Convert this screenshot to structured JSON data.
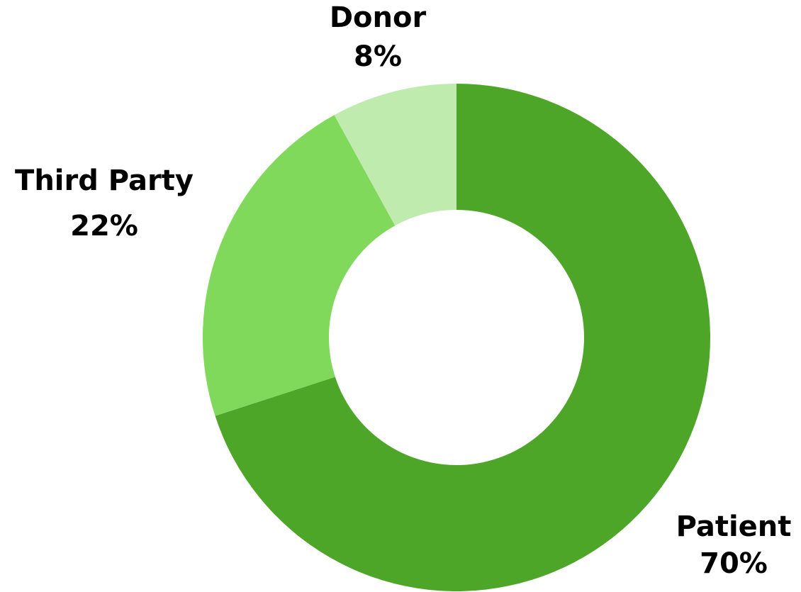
{
  "chart_data": {
    "type": "pie",
    "donut": true,
    "title": "",
    "slices": [
      {
        "name": "Patient",
        "value": 70,
        "label": "70%",
        "color": "#4ea628"
      },
      {
        "name": "Third Party",
        "value": 22,
        "label": "22%",
        "color": "#80d95a"
      },
      {
        "name": "Donor",
        "value": 8,
        "label": "8%",
        "color": "#c0ebae"
      }
    ],
    "start_angle_deg": 0,
    "direction": "clockwise",
    "legend": "none (labels placed outside slices)"
  }
}
